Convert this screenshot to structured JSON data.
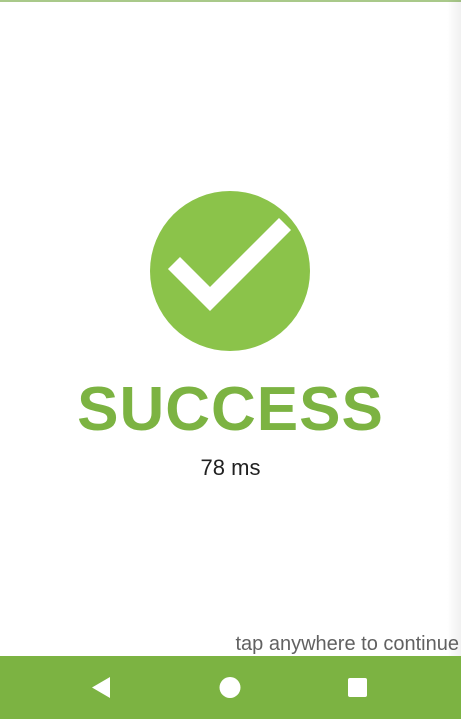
{
  "result": {
    "status_label": "SUCCESS",
    "timing": "78 ms",
    "icon": "checkmark-icon"
  },
  "hint": {
    "text": "tap anywhere to continue"
  },
  "nav_bar": {
    "buttons": [
      {
        "name": "back",
        "icon": "triangle-left-icon"
      },
      {
        "name": "home",
        "icon": "circle-icon"
      },
      {
        "name": "recents",
        "icon": "square-icon"
      }
    ]
  },
  "colors": {
    "accent": "#8bc34a",
    "title": "#7cb342",
    "nav_bar": "#7cb342",
    "nav_icons": "#ffffff",
    "check_mark": "#ffffff"
  }
}
